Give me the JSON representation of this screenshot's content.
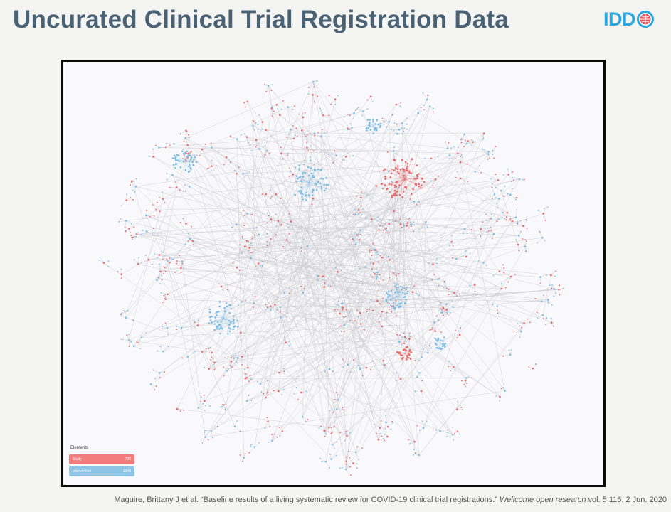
{
  "slide": {
    "title": "Uncurated Clinical Trial Registration Data"
  },
  "logo": {
    "text": "IDD",
    "globe_icon": "globe-icon"
  },
  "network": {
    "legend": {
      "title": "Elements",
      "items": [
        {
          "label": "Study",
          "count": "790",
          "color": "#f07c7c"
        },
        {
          "label": "Intervention",
          "count": "1348",
          "color": "#8ec5e6"
        }
      ]
    },
    "edge_color": "#c9c9cf",
    "study_color": "#ec6a6a",
    "intervention_color": "#7fbde3"
  },
  "citation": {
    "text_main": "Maguire, Brittany J et al. “Baseline results of a living systematic review for COVID-19 clinical trial registrations.” ",
    "journal": "Wellcome open research",
    "text_tail": " vol. 5 116. 2 Jun. 2020"
  }
}
